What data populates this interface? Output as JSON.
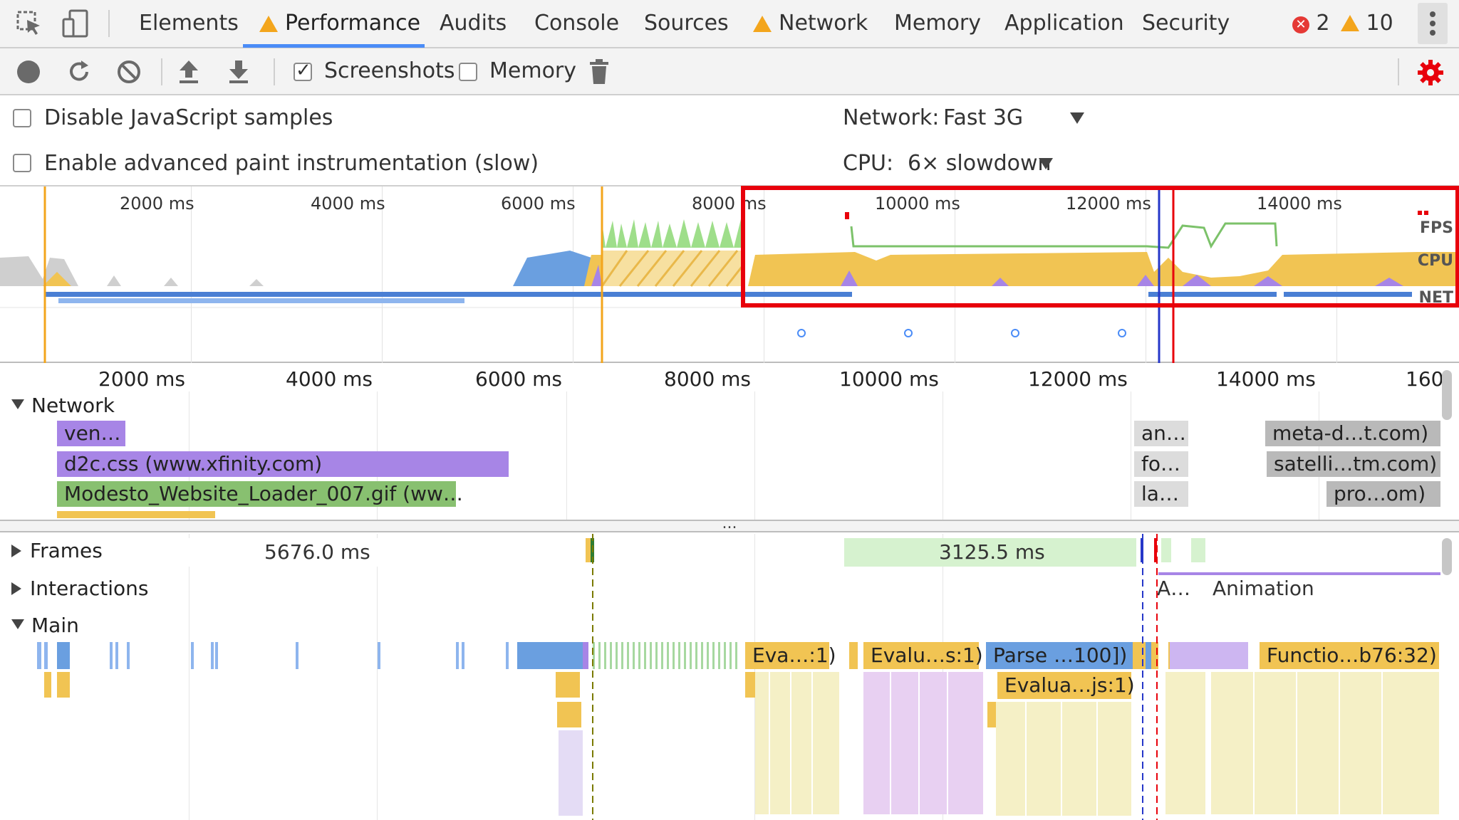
{
  "tabs": [
    {
      "label": "Elements",
      "warn": false
    },
    {
      "label": "Performance",
      "warn": true
    },
    {
      "label": "Audits",
      "warn": false
    },
    {
      "label": "Console",
      "warn": false
    },
    {
      "label": "Sources",
      "warn": false
    },
    {
      "label": "Network",
      "warn": true
    },
    {
      "label": "Memory",
      "warn": false
    },
    {
      "label": "Application",
      "warn": false
    },
    {
      "label": "Security",
      "warn": false
    }
  ],
  "status": {
    "errors": "2",
    "warnings": "10"
  },
  "toolbar": {
    "screenshots_label": "Screenshots",
    "screenshots_checked": true,
    "memory_label": "Memory",
    "memory_checked": false
  },
  "options": {
    "disable_js_samples": "Disable JavaScript samples",
    "advanced_paint": "Enable advanced paint instrumentation (slow)",
    "network_label": "Network:",
    "network_value": "Fast 3G",
    "cpu_label": "CPU:",
    "cpu_value": "6× slowdown"
  },
  "overview": {
    "ticks": [
      "2000 ms",
      "4000 ms",
      "6000 ms",
      "8000 ms",
      "10000 ms",
      "12000 ms",
      "14000 ms"
    ],
    "labels": {
      "fps": "FPS",
      "cpu": "CPU",
      "net": "NET"
    }
  },
  "ruler": {
    "ticks": [
      "2000 ms",
      "4000 ms",
      "6000 ms",
      "8000 ms",
      "10000 ms",
      "12000 ms",
      "14000 ms",
      "160"
    ]
  },
  "network": {
    "title": "Network",
    "requests": [
      "ven…",
      "d2c.css (www.xfinity.com)",
      "Modesto_Website_Loader_007.gif (ww…",
      "an…",
      "fo…",
      "la…",
      "meta-d…t.com)",
      "satelli…tm.com)",
      "pro…om)"
    ]
  },
  "splitter": "...",
  "frames": {
    "title": "Frames",
    "frame1": "5676.0 ms",
    "frame2": "3125.5 ms"
  },
  "interactions": {
    "title": "Interactions",
    "a_label": "A…",
    "anim_label": "Animation"
  },
  "main": {
    "title": "Main",
    "events": [
      "Eva…:1)",
      "Evalu…s:1)",
      "Parse …100])",
      "Functio…b76:32)",
      "Evalua…js:1)"
    ]
  },
  "colors": {
    "highlight": "#e8000b",
    "accent": "#4a8cf7",
    "scripting": "#f1c453",
    "rendering": "#a785e6",
    "loading": "#6a9fe0",
    "painting": "#7cc26a"
  }
}
